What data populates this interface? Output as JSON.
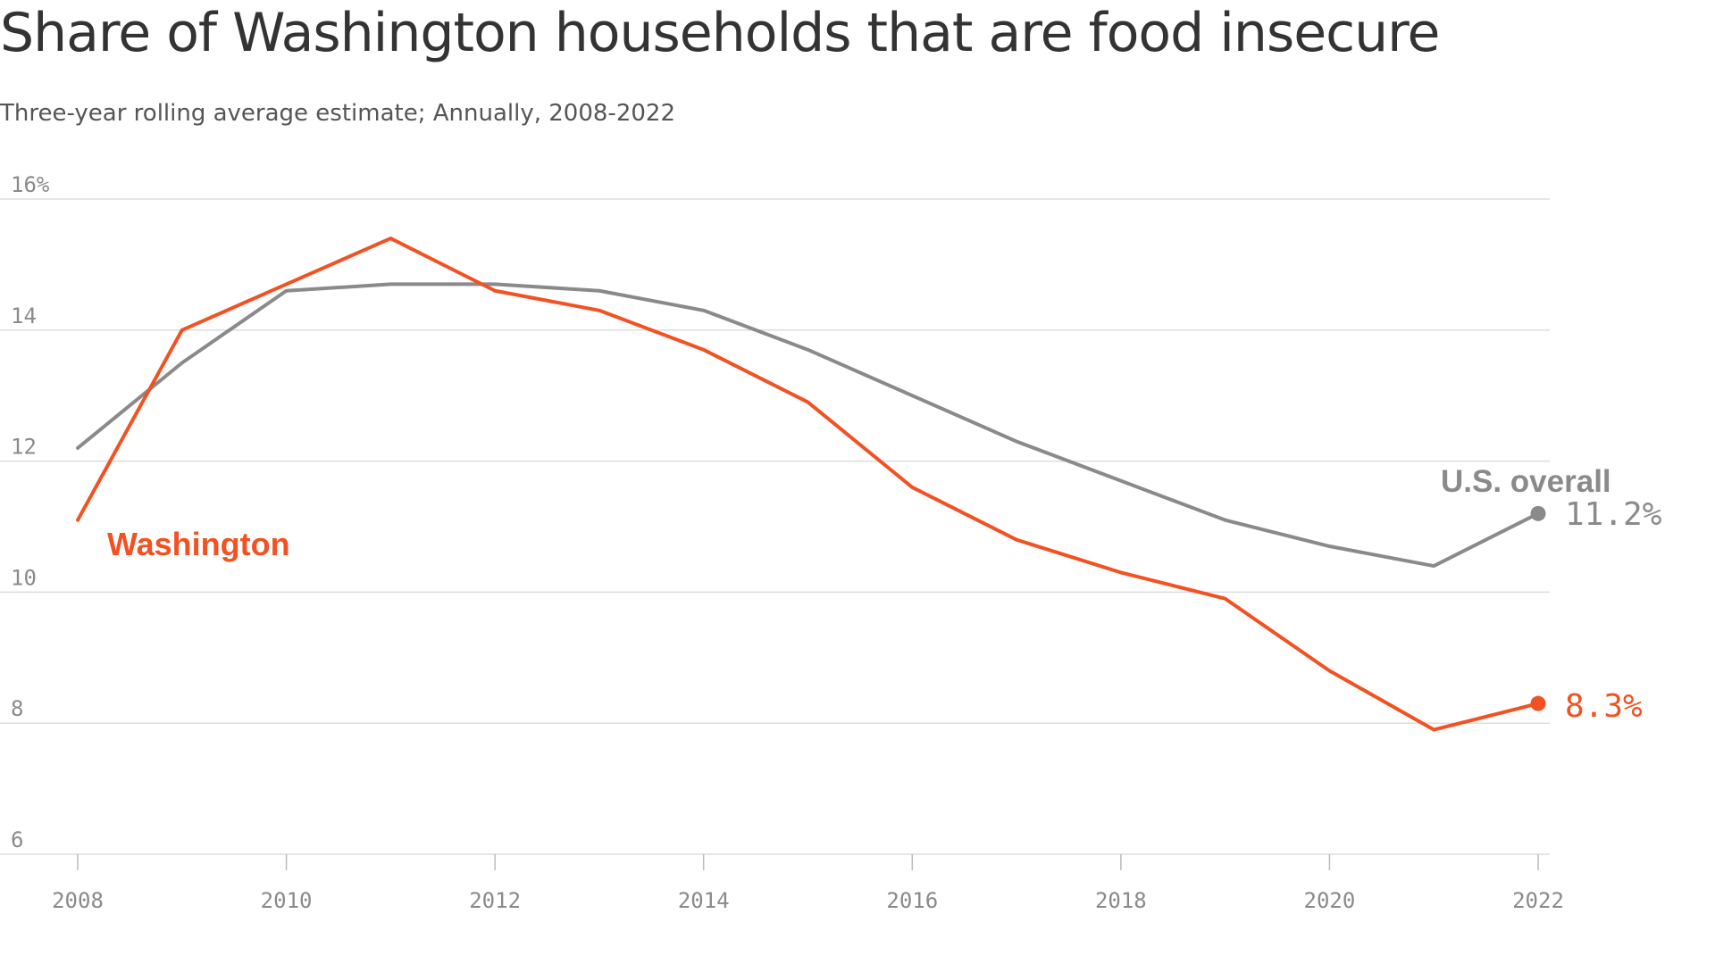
{
  "title": "Share of Washington households that are food insecure",
  "subtitle": "Three-year rolling average estimate; Annually, 2008-2022",
  "colors": {
    "washington": "#F25122",
    "us": "#8a8a8a",
    "grid": "#dddddd",
    "text": "#333333"
  },
  "chart_data": {
    "type": "line",
    "title": "Share of Washington households that are food insecure",
    "subtitle": "Three-year rolling average estimate; Annually, 2008-2022",
    "x": [
      2008,
      2009,
      2010,
      2011,
      2012,
      2013,
      2014,
      2015,
      2016,
      2017,
      2018,
      2019,
      2020,
      2021,
      2022
    ],
    "xticks": [
      2008,
      2010,
      2012,
      2014,
      2016,
      2018,
      2020,
      2022
    ],
    "xtick_labels": [
      "2008",
      "2010",
      "2012",
      "2014",
      "2016",
      "2018",
      "2020",
      "2022"
    ],
    "yticks": [
      6,
      8,
      10,
      12,
      14,
      16
    ],
    "ytick_labels": [
      "6",
      "8",
      "10",
      "12",
      "14",
      "16%"
    ],
    "ylim": [
      6,
      16
    ],
    "xlim": [
      2008,
      2022
    ],
    "grid": true,
    "series": [
      {
        "name": "Washington",
        "values": [
          11.1,
          14.0,
          14.7,
          15.4,
          14.6,
          14.3,
          13.7,
          12.9,
          11.6,
          10.8,
          10.3,
          9.9,
          8.8,
          7.9,
          8.3
        ],
        "end_label": "8.3%"
      },
      {
        "name": "U.S. overall",
        "values": [
          12.2,
          13.5,
          14.6,
          14.7,
          14.7,
          14.6,
          14.3,
          13.7,
          13.0,
          12.3,
          11.7,
          11.1,
          10.7,
          10.4,
          11.2
        ],
        "end_label": "11.2%"
      }
    ]
  }
}
